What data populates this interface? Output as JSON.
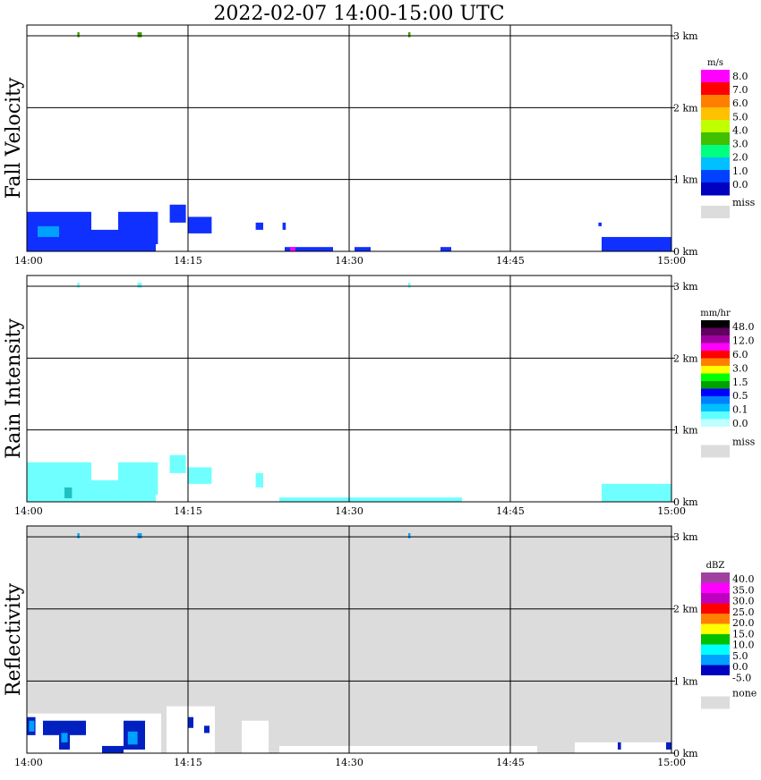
{
  "title": "2022-02-07  14:00-15:00 UTC",
  "chart_data": [
    {
      "type": "heatmap",
      "name": "fall-velocity",
      "ylabel": "Fall Velocity",
      "x_ticks": [
        "14:00",
        "14:15",
        "14:30",
        "14:45",
        "15:00"
      ],
      "y_ticks": [
        "0 km",
        "1 km",
        "2 km",
        "3 km"
      ],
      "xlim_minutes": [
        0,
        60
      ],
      "ylim_km": [
        0,
        3.0
      ],
      "grid": true,
      "background": "#ffffff",
      "legend": {
        "unit": "m/s",
        "labels": [
          "8.0",
          "7.0",
          "6.0",
          "5.0",
          "4.0",
          "3.0",
          "2.0",
          "1.0",
          "0.0"
        ],
        "colors": [
          "#ff00ff",
          "#ff0000",
          "#ff8000",
          "#ffc000",
          "#c0ff00",
          "#40c000",
          "#00ff80",
          "#00c0ff",
          "#0040ff",
          "#0000c0"
        ],
        "miss_label": "miss",
        "miss_color": "#dcdcdc"
      },
      "echoes": [
        {
          "x0": 0.0,
          "x1": 6.0,
          "y0": 0.0,
          "y1": 0.55,
          "color": "#1030ff"
        },
        {
          "x0": 6.0,
          "x1": 8.5,
          "y0": 0.0,
          "y1": 0.3,
          "color": "#1030ff"
        },
        {
          "x0": 8.0,
          "x1": 12.0,
          "y0": 0.0,
          "y1": 0.15,
          "color": "#1030ff"
        },
        {
          "x0": 8.5,
          "x1": 12.2,
          "y0": 0.1,
          "y1": 0.55,
          "color": "#1030ff"
        },
        {
          "x0": 1.0,
          "x1": 3.0,
          "y0": 0.2,
          "y1": 0.35,
          "color": "#00a0ff"
        },
        {
          "x0": 13.3,
          "x1": 14.8,
          "y0": 0.4,
          "y1": 0.65,
          "color": "#1030ff"
        },
        {
          "x0": 15.0,
          "x1": 17.2,
          "y0": 0.25,
          "y1": 0.48,
          "color": "#1030ff"
        },
        {
          "x0": 21.3,
          "x1": 22.0,
          "y0": 0.3,
          "y1": 0.4,
          "color": "#1030ff"
        },
        {
          "x0": 23.8,
          "x1": 24.1,
          "y0": 0.3,
          "y1": 0.4,
          "color": "#1030ff"
        },
        {
          "x0": 24.0,
          "x1": 28.5,
          "y0": 0.0,
          "y1": 0.06,
          "color": "#1030ff"
        },
        {
          "x0": 24.5,
          "x1": 25.0,
          "y0": 0.0,
          "y1": 0.06,
          "color": "#ff00ff"
        },
        {
          "x0": 30.5,
          "x1": 32.0,
          "y0": 0.0,
          "y1": 0.06,
          "color": "#1030ff"
        },
        {
          "x0": 38.5,
          "x1": 39.5,
          "y0": 0.0,
          "y1": 0.06,
          "color": "#1030ff"
        },
        {
          "x0": 53.5,
          "x1": 60.0,
          "y0": 0.0,
          "y1": 0.2,
          "color": "#1030ff"
        },
        {
          "x0": 53.2,
          "x1": 53.5,
          "y0": 0.35,
          "y1": 0.4,
          "color": "#1030ff"
        },
        {
          "x0": 4.7,
          "x1": 4.9,
          "y0": 2.98,
          "y1": 3.05,
          "color": "#40a000"
        },
        {
          "x0": 10.3,
          "x1": 10.7,
          "y0": 2.98,
          "y1": 3.05,
          "color": "#40a000"
        },
        {
          "x0": 35.5,
          "x1": 35.7,
          "y0": 2.98,
          "y1": 3.05,
          "color": "#40a000"
        }
      ]
    },
    {
      "type": "heatmap",
      "name": "rain-intensity",
      "ylabel": "Rain Intensity",
      "x_ticks": [
        "14:00",
        "14:15",
        "14:30",
        "14:45",
        "15:00"
      ],
      "y_ticks": [
        "0 km",
        "1 km",
        "2 km",
        "3 km"
      ],
      "xlim_minutes": [
        0,
        60
      ],
      "ylim_km": [
        0,
        3.0
      ],
      "grid": true,
      "background": "#ffffff",
      "legend": {
        "unit": "mm/hr",
        "labels": [
          "48.0",
          "12.0",
          "6.0",
          "3.0",
          "1.5",
          "0.5",
          "0.1",
          "0.0"
        ],
        "colors": [
          "#000000",
          "#600060",
          "#a000a0",
          "#ff00ff",
          "#ff0000",
          "#ff8000",
          "#ffff00",
          "#00ff00",
          "#00a000",
          "#0000ff",
          "#0080ff",
          "#00c0ff",
          "#60ffff",
          "#c0ffff",
          "#ffffff"
        ],
        "miss_label": "miss",
        "miss_color": "#dcdcdc"
      },
      "echoes": [
        {
          "x0": 0.0,
          "x1": 6.0,
          "y0": 0.0,
          "y1": 0.55,
          "color": "#70ffff"
        },
        {
          "x0": 6.0,
          "x1": 8.5,
          "y0": 0.0,
          "y1": 0.3,
          "color": "#70ffff"
        },
        {
          "x0": 8.0,
          "x1": 12.0,
          "y0": 0.0,
          "y1": 0.15,
          "color": "#70ffff"
        },
        {
          "x0": 8.5,
          "x1": 12.2,
          "y0": 0.1,
          "y1": 0.55,
          "color": "#70ffff"
        },
        {
          "x0": 3.5,
          "x1": 4.2,
          "y0": 0.05,
          "y1": 0.2,
          "color": "#20c0c0"
        },
        {
          "x0": 13.3,
          "x1": 14.8,
          "y0": 0.4,
          "y1": 0.65,
          "color": "#70ffff"
        },
        {
          "x0": 15.0,
          "x1": 17.2,
          "y0": 0.25,
          "y1": 0.48,
          "color": "#70ffff"
        },
        {
          "x0": 21.3,
          "x1": 22.0,
          "y0": 0.2,
          "y1": 0.4,
          "color": "#70ffff"
        },
        {
          "x0": 23.5,
          "x1": 40.5,
          "y0": 0.0,
          "y1": 0.06,
          "color": "#70ffff"
        },
        {
          "x0": 53.5,
          "x1": 60.0,
          "y0": 0.0,
          "y1": 0.25,
          "color": "#70ffff"
        },
        {
          "x0": 4.7,
          "x1": 4.9,
          "y0": 2.98,
          "y1": 3.05,
          "color": "#70ffff"
        },
        {
          "x0": 10.3,
          "x1": 10.7,
          "y0": 2.98,
          "y1": 3.05,
          "color": "#70ffff"
        },
        {
          "x0": 35.5,
          "x1": 35.7,
          "y0": 2.98,
          "y1": 3.05,
          "color": "#70ffff"
        }
      ]
    },
    {
      "type": "heatmap",
      "name": "reflectivity",
      "ylabel": "Reflectivity",
      "x_ticks": [
        "14:00",
        "14:15",
        "14:30",
        "14:45",
        "15:00"
      ],
      "y_ticks": [
        "0 km",
        "1 km",
        "2 km",
        "3 km"
      ],
      "xlim_minutes": [
        0,
        60
      ],
      "ylim_km": [
        0,
        3.0
      ],
      "grid": true,
      "background": "#dcdcdc",
      "legend": {
        "unit": "dBZ",
        "labels": [
          "40.0",
          "35.0",
          "30.0",
          "25.0",
          "20.0",
          "15.0",
          "10.0",
          "5.0",
          "0.0",
          "-5.0"
        ],
        "colors": [
          "#a040a0",
          "#ff00ff",
          "#c000c0",
          "#ff0000",
          "#ff8000",
          "#ffff00",
          "#00c000",
          "#00ffff",
          "#00a0ff",
          "#0000c0",
          "#ffffff"
        ],
        "miss_label": "none",
        "miss_color": "#dcdcdc"
      },
      "echoes": [
        {
          "x0": 0.0,
          "x1": 12.5,
          "y0": 0.0,
          "y1": 0.55,
          "color": "#ffffff"
        },
        {
          "x0": 13.0,
          "x1": 17.5,
          "y0": 0.0,
          "y1": 0.65,
          "color": "#ffffff"
        },
        {
          "x0": 20.0,
          "x1": 22.5,
          "y0": 0.0,
          "y1": 0.45,
          "color": "#ffffff"
        },
        {
          "x0": 23.5,
          "x1": 47.5,
          "y0": 0.0,
          "y1": 0.1,
          "color": "#ffffff"
        },
        {
          "x0": 51.0,
          "x1": 60.0,
          "y0": 0.0,
          "y1": 0.15,
          "color": "#ffffff"
        },
        {
          "x0": 0.0,
          "x1": 0.8,
          "y0": 0.25,
          "y1": 0.5,
          "color": "#0020c0"
        },
        {
          "x0": 0.2,
          "x1": 0.7,
          "y0": 0.3,
          "y1": 0.45,
          "color": "#00a0ff"
        },
        {
          "x0": 1.5,
          "x1": 5.5,
          "y0": 0.25,
          "y1": 0.45,
          "color": "#0020c0"
        },
        {
          "x0": 3.0,
          "x1": 4.0,
          "y0": 0.05,
          "y1": 0.3,
          "color": "#0020c0"
        },
        {
          "x0": 3.2,
          "x1": 3.8,
          "y0": 0.15,
          "y1": 0.28,
          "color": "#00a0ff"
        },
        {
          "x0": 7.0,
          "x1": 9.0,
          "y0": 0.0,
          "y1": 0.1,
          "color": "#0020c0"
        },
        {
          "x0": 9.0,
          "x1": 11.0,
          "y0": 0.05,
          "y1": 0.45,
          "color": "#0020c0"
        },
        {
          "x0": 9.4,
          "x1": 10.3,
          "y0": 0.12,
          "y1": 0.3,
          "color": "#00a0ff"
        },
        {
          "x0": 15.0,
          "x1": 15.5,
          "y0": 0.35,
          "y1": 0.5,
          "color": "#0020c0"
        },
        {
          "x0": 16.5,
          "x1": 17.0,
          "y0": 0.28,
          "y1": 0.38,
          "color": "#0020c0"
        },
        {
          "x0": 55.0,
          "x1": 55.3,
          "y0": 0.05,
          "y1": 0.15,
          "color": "#0020c0"
        },
        {
          "x0": 59.5,
          "x1": 60.0,
          "y0": 0.05,
          "y1": 0.15,
          "color": "#0020c0"
        },
        {
          "x0": 4.7,
          "x1": 4.9,
          "y0": 2.98,
          "y1": 3.05,
          "color": "#00a0ff"
        },
        {
          "x0": 10.3,
          "x1": 10.7,
          "y0": 2.98,
          "y1": 3.05,
          "color": "#00a0ff"
        },
        {
          "x0": 35.5,
          "x1": 35.7,
          "y0": 2.98,
          "y1": 3.05,
          "color": "#00a0ff"
        }
      ]
    }
  ]
}
